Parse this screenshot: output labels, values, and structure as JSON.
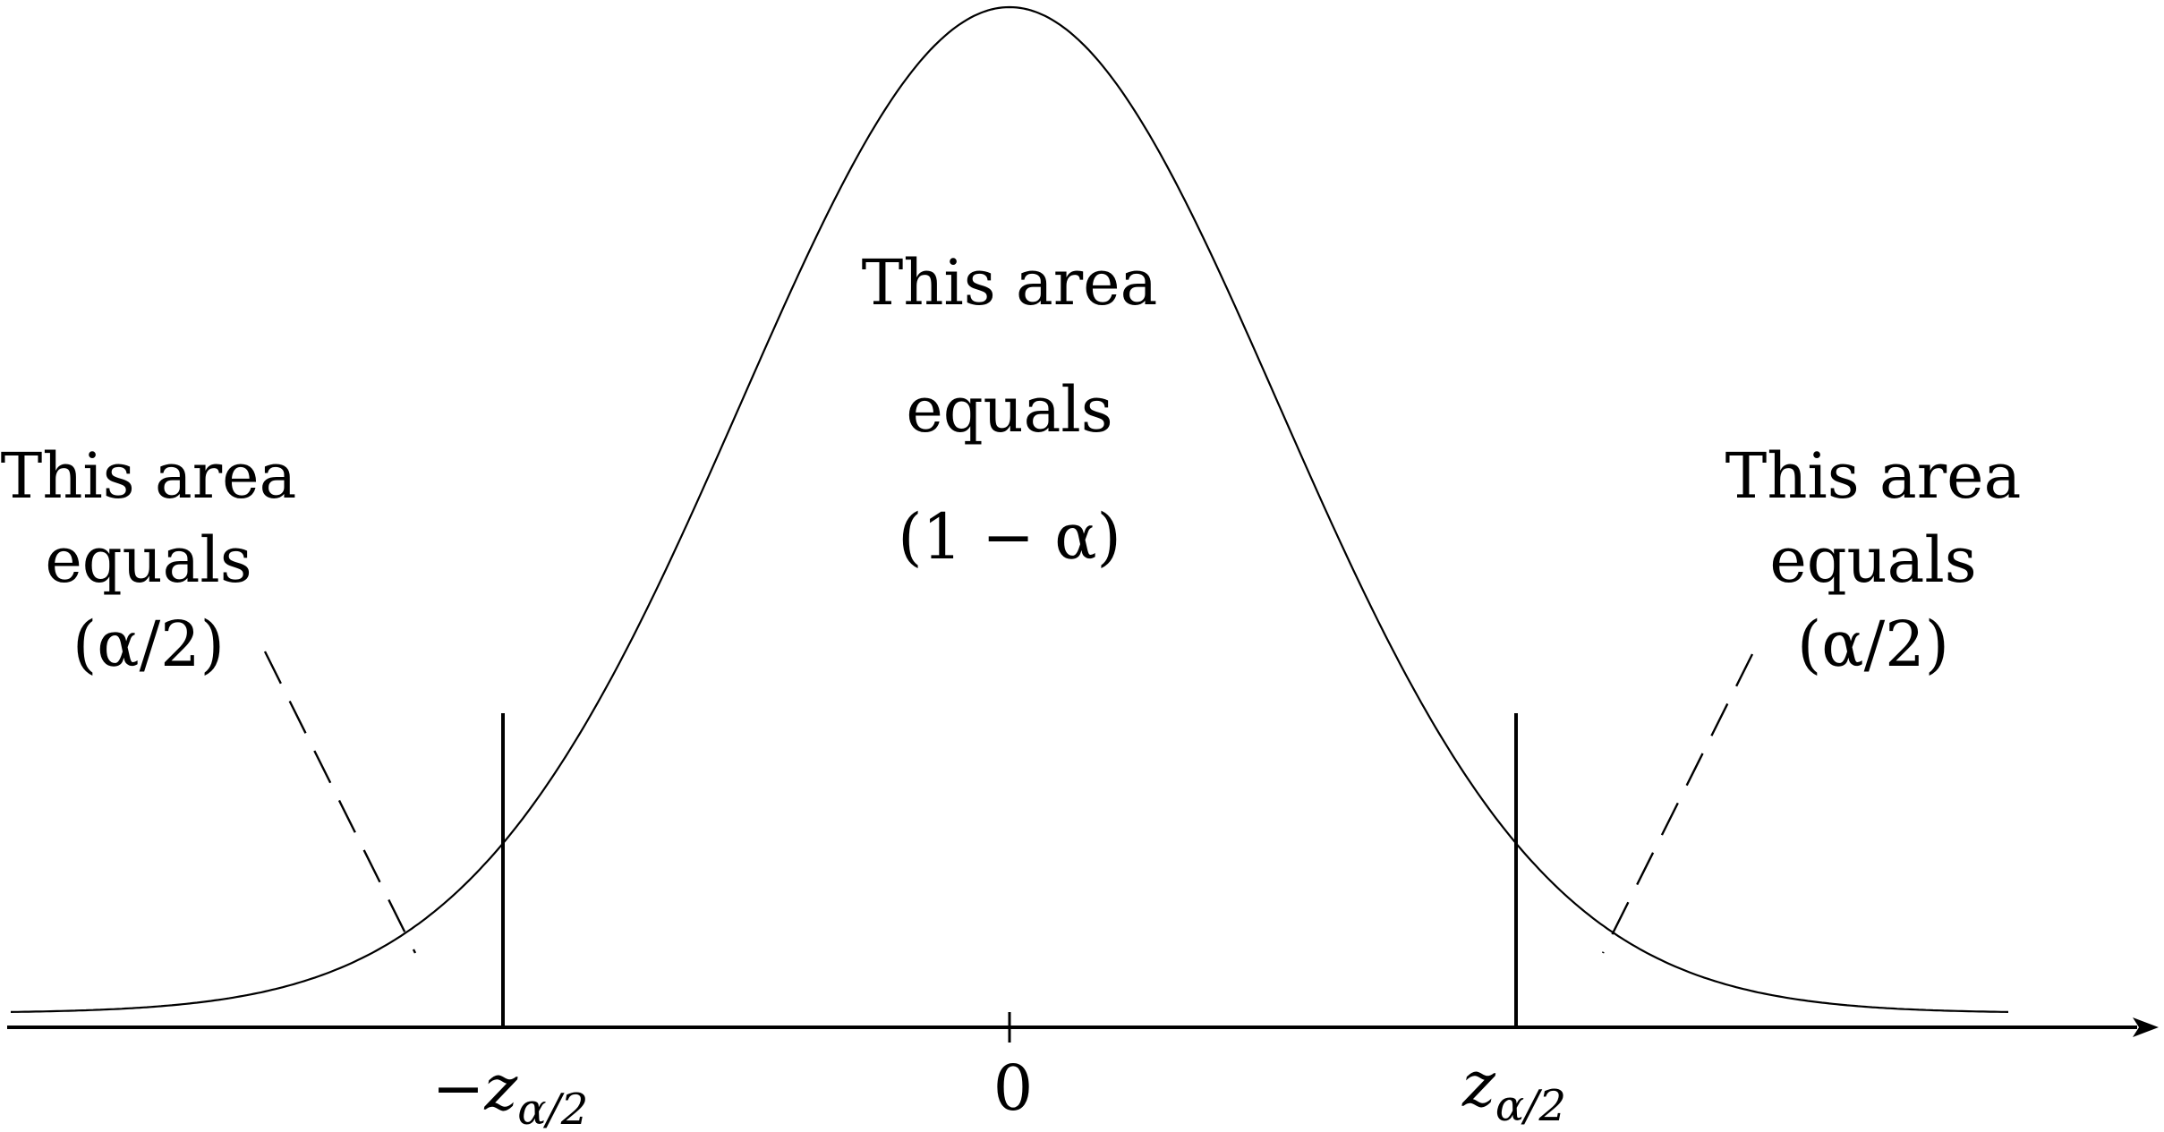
{
  "diagram": {
    "center_label": {
      "line1": "This area",
      "line2": "equals",
      "line3": "(1 − α)"
    },
    "left_label": {
      "line1": "This area",
      "line2": "equals",
      "line3": "(α/2)"
    },
    "right_label": {
      "line1": "This area",
      "line2": "equals",
      "line3": "(α/2)"
    },
    "ticks": {
      "left": {
        "sign": "−",
        "symbol": "z",
        "subscript": "α/2"
      },
      "center": "0",
      "right": {
        "symbol": "z",
        "subscript": "α/2"
      }
    }
  },
  "colors": {
    "ink": "#000000",
    "background": "#ffffff"
  }
}
